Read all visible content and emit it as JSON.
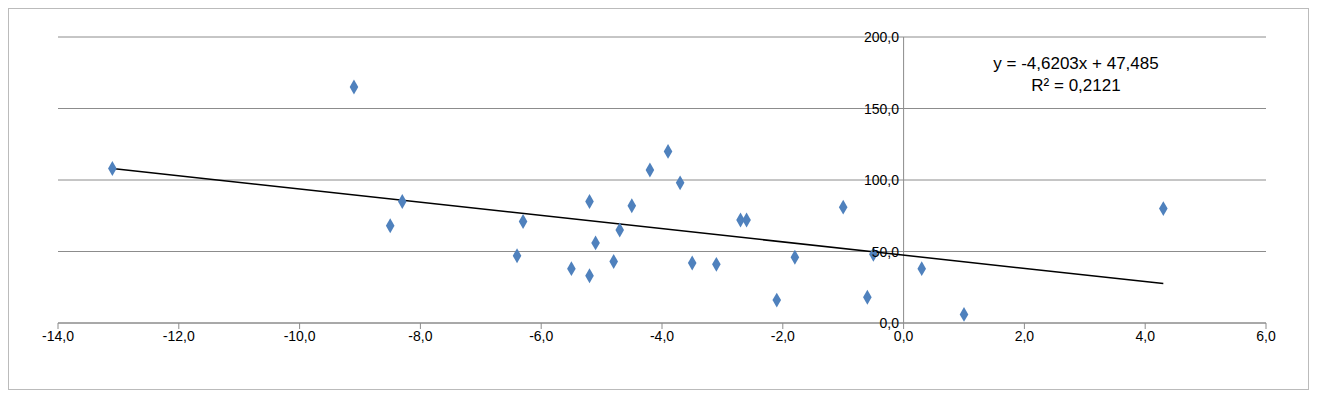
{
  "chart_data": {
    "type": "scatter",
    "x": [
      -13.1,
      -9.1,
      -8.5,
      -8.3,
      -6.4,
      -6.3,
      -5.5,
      -5.2,
      -5.2,
      -5.1,
      -4.8,
      -4.7,
      -4.5,
      -4.2,
      -3.9,
      -3.7,
      -3.5,
      -3.1,
      -2.7,
      -2.6,
      -2.1,
      -1.8,
      -1.0,
      -0.6,
      -0.5,
      0.3,
      1.0,
      4.3
    ],
    "values": [
      108,
      165,
      68,
      85,
      47,
      71,
      38,
      33,
      85,
      56,
      43,
      65,
      82,
      107,
      120,
      98,
      42,
      41,
      72,
      72,
      16,
      46,
      81,
      18,
      48,
      38,
      6,
      80
    ],
    "color": "#4f81bd",
    "marker": "diamond",
    "xlim": [
      -14,
      6
    ],
    "ylim": [
      0,
      200
    ],
    "xticks": [
      {
        "value": -14,
        "label": "-14,0"
      },
      {
        "value": -12,
        "label": "-12,0"
      },
      {
        "value": -10,
        "label": "-10,0"
      },
      {
        "value": -8,
        "label": "-8,0"
      },
      {
        "value": -6,
        "label": "-6,0"
      },
      {
        "value": -4,
        "label": "-4,0"
      },
      {
        "value": -2,
        "label": "-2,0"
      },
      {
        "value": 0,
        "label": "0,0"
      },
      {
        "value": 2,
        "label": "2,0"
      },
      {
        "value": 4,
        "label": "4,0"
      },
      {
        "value": 6,
        "label": "6,0"
      }
    ],
    "yticks": [
      {
        "value": 0,
        "label": "0,0"
      },
      {
        "value": 50,
        "label": "50,0"
      },
      {
        "value": 100,
        "label": "100,0"
      },
      {
        "value": 150,
        "label": "150,0"
      },
      {
        "value": 200,
        "label": "200,0"
      }
    ],
    "grid": true,
    "trendline": {
      "x": [
        -13.1,
        4.3
      ],
      "y": [
        108.0,
        27.6
      ],
      "color": "#000000"
    },
    "annotations": [
      "y = -4,6203x + 47,485",
      "R² = 0,2121"
    ]
  }
}
